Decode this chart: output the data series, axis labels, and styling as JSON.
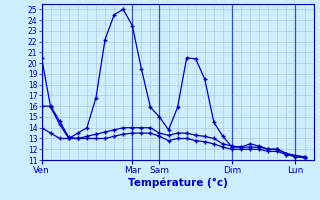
{
  "xlabel": "Température (°c)",
  "bg_color": "#cceeff",
  "grid_color": "#aabbcc",
  "line_color": "#0000bb",
  "vline_color": "#3355aa",
  "ylim": [
    11,
    25.5
  ],
  "yticks": [
    11,
    12,
    13,
    14,
    15,
    16,
    17,
    18,
    19,
    20,
    21,
    22,
    23,
    24,
    25
  ],
  "xlim": [
    0,
    30
  ],
  "day_labels": [
    "Ven",
    "Mar",
    "Sam",
    "Dim",
    "Lun"
  ],
  "day_positions": [
    0,
    10,
    13,
    21,
    28
  ],
  "series1_x": [
    0,
    1,
    2,
    3,
    4,
    5,
    6,
    7,
    8,
    9,
    10,
    11,
    12,
    13,
    14,
    15,
    16,
    17,
    18,
    19,
    20,
    21,
    22,
    23,
    24,
    25,
    26,
    27,
    28,
    29
  ],
  "series1_y": [
    20.5,
    15.9,
    14.3,
    13.0,
    13.5,
    14.0,
    16.8,
    22.2,
    24.5,
    25.0,
    23.5,
    19.5,
    15.9,
    15.0,
    13.8,
    15.9,
    20.5,
    20.4,
    18.5,
    14.5,
    13.2,
    12.2,
    12.2,
    12.5,
    12.3,
    12.0,
    12.0,
    11.6,
    11.4,
    11.3
  ],
  "series2_x": [
    0,
    1,
    2,
    3,
    4,
    5,
    6,
    7,
    8,
    9,
    10,
    11,
    12,
    13,
    14,
    15,
    16,
    17,
    18,
    19,
    20,
    21,
    22,
    23,
    24,
    25,
    26,
    27,
    28,
    29
  ],
  "series2_y": [
    16.0,
    16.0,
    14.6,
    13.1,
    13.0,
    13.2,
    13.4,
    13.6,
    13.8,
    14.0,
    14.0,
    14.0,
    14.0,
    13.5,
    13.3,
    13.5,
    13.5,
    13.3,
    13.2,
    13.0,
    12.5,
    12.3,
    12.2,
    12.2,
    12.2,
    12.0,
    12.0,
    11.6,
    11.4,
    11.3
  ],
  "series3_x": [
    0,
    1,
    2,
    3,
    4,
    5,
    6,
    7,
    8,
    9,
    10,
    11,
    12,
    13,
    14,
    15,
    16,
    17,
    18,
    19,
    20,
    21,
    22,
    23,
    24,
    25,
    26,
    27,
    28,
    29
  ],
  "series3_y": [
    14.0,
    13.5,
    13.0,
    13.0,
    13.0,
    13.0,
    13.0,
    13.0,
    13.2,
    13.4,
    13.5,
    13.5,
    13.5,
    13.2,
    12.8,
    13.0,
    13.0,
    12.8,
    12.7,
    12.5,
    12.2,
    12.0,
    12.0,
    12.0,
    12.0,
    11.8,
    11.8,
    11.5,
    11.3,
    11.2
  ]
}
